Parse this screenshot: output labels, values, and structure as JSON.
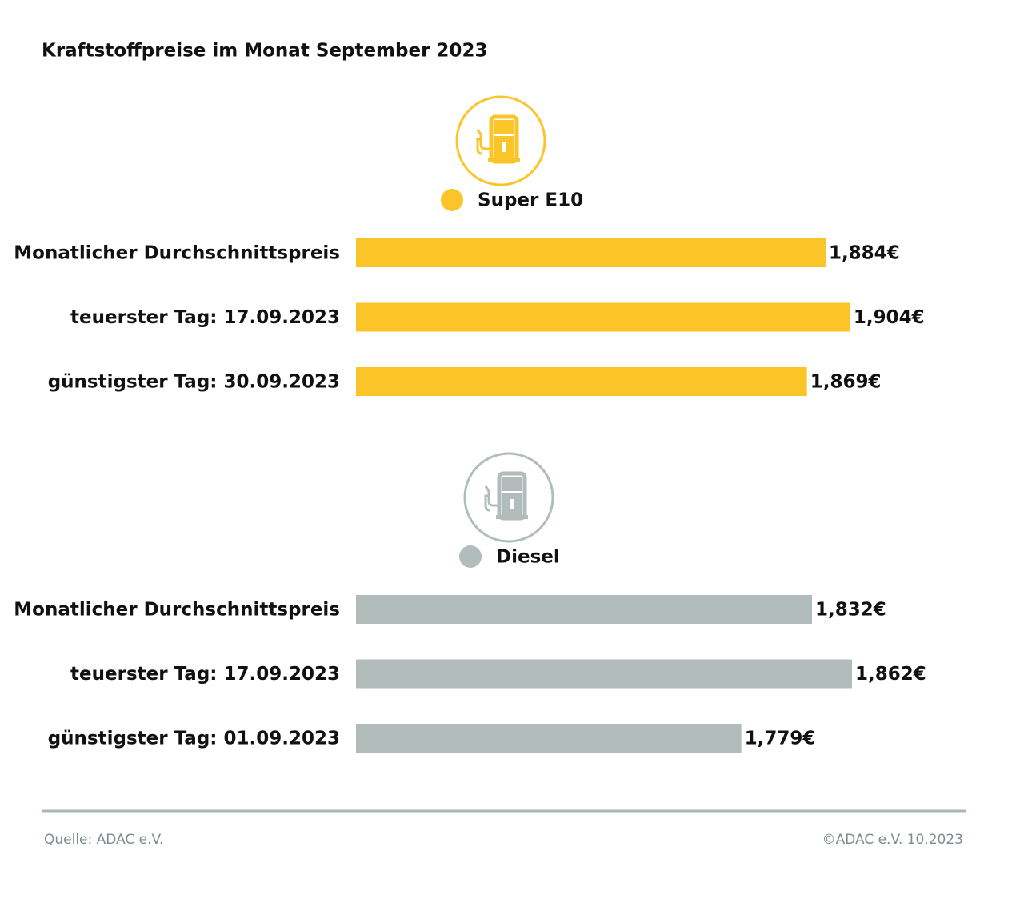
{
  "title": "Kraftstoffpreise im Monat September 2023",
  "chart_data": [
    {
      "type": "bar",
      "orientation": "horizontal",
      "series": [
        {
          "name": "Super E10",
          "color": "#fbc52a",
          "values": [
            1.884,
            1.904,
            1.869
          ],
          "value_labels": [
            "1,884€",
            "1,904€",
            "1,869€"
          ]
        }
      ],
      "categories": [
        "Monatlicher Durchschnittspreis",
        "teuerster Tag: 17.09.2023",
        "günstigster Tag: 30.09.2023"
      ],
      "xlim": [
        1.505,
        1.957
      ]
    },
    {
      "type": "bar",
      "orientation": "horizontal",
      "series": [
        {
          "name": "Diesel",
          "color": "#b1bcbb",
          "values": [
            1.832,
            1.862,
            1.779
          ],
          "value_labels": [
            "1,832€",
            "1,862€",
            "1,779€"
          ]
        }
      ],
      "categories": [
        "Monatlicher Durchschnittspreis",
        "teuerster Tag: 17.09.2023",
        "günstigster Tag: 01.09.2023"
      ],
      "xlim": [
        1.49,
        1.91
      ]
    }
  ],
  "source": "Quelle: ADAC e.V.",
  "copyright": "©ADAC e.V. 10.2023"
}
